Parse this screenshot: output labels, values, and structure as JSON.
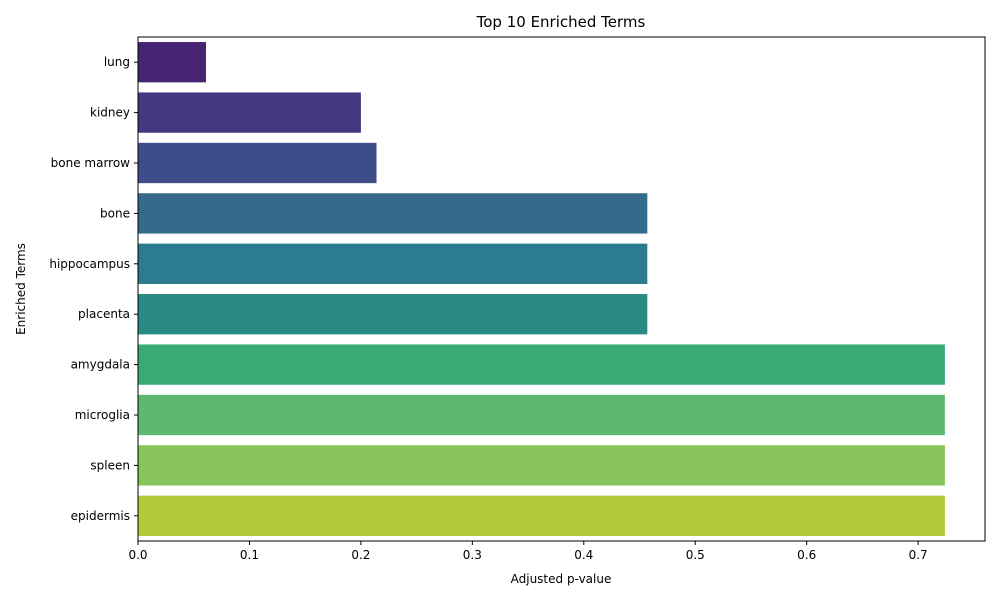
{
  "chart_data": {
    "type": "bar",
    "orientation": "horizontal",
    "title": "Top 10 Enriched Terms",
    "xlabel": "Adjusted p-value",
    "ylabel": "Enriched Terms",
    "categories": [
      "lung",
      "kidney",
      "bone marrow",
      "bone",
      "hippocampus",
      "placenta",
      "amygdala",
      "microglia",
      "spleen",
      "epidermis"
    ],
    "values": [
      0.061,
      0.2,
      0.214,
      0.457,
      0.457,
      0.457,
      0.724,
      0.724,
      0.724,
      0.724
    ],
    "colors": [
      "#482475",
      "#453882",
      "#3e4c8a",
      "#366a8c",
      "#2d7b8e",
      "#2a8b84",
      "#39a975",
      "#5fb872",
      "#87c45a",
      "#b2c93a"
    ],
    "xlim": [
      0,
      0.76
    ],
    "xticks": [
      0.0,
      0.1,
      0.2,
      0.3,
      0.4,
      0.5,
      0.6,
      0.7
    ],
    "xtick_labels": [
      "0.0",
      "0.1",
      "0.2",
      "0.3",
      "0.4",
      "0.5",
      "0.6",
      "0.7"
    ],
    "grid": false,
    "legend": "none"
  }
}
